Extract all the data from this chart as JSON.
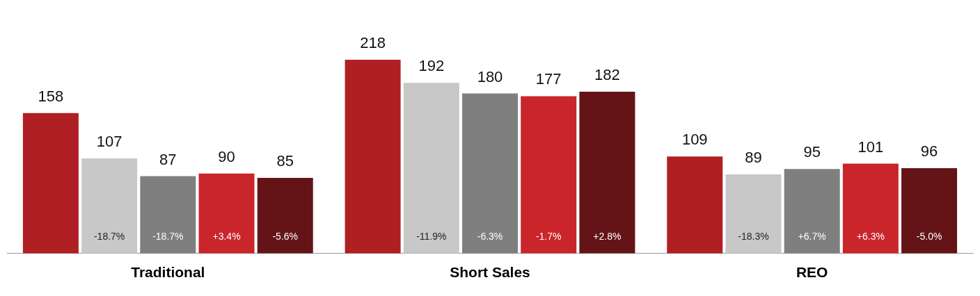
{
  "chart_data": {
    "type": "bar",
    "categories": [
      "Traditional",
      "Short Sales",
      "REO"
    ],
    "series": [
      {
        "color": "#b01f24",
        "values": [
          158,
          218,
          109
        ]
      },
      {
        "color": "#c8c8c8",
        "values": [
          107,
          192,
          89
        ]
      },
      {
        "color": "#7f7f7f",
        "values": [
          87,
          180,
          95
        ]
      },
      {
        "color": "#c9252a",
        "values": [
          90,
          177,
          101
        ]
      },
      {
        "color": "#641416",
        "values": [
          85,
          182,
          96
        ]
      }
    ],
    "tick_labels": "x",
    "data_labels": true,
    "grid": false,
    "legend": false,
    "annotations": [
      "-18.7%",
      "-18.7%",
      "+3.4%",
      "-5.6%",
      "-11.9%",
      "-6.3%",
      "-1.7%",
      "+2.8%",
      "-18.3%",
      "+6.7%",
      "+6.3%",
      "-5.0%"
    ]
  }
}
